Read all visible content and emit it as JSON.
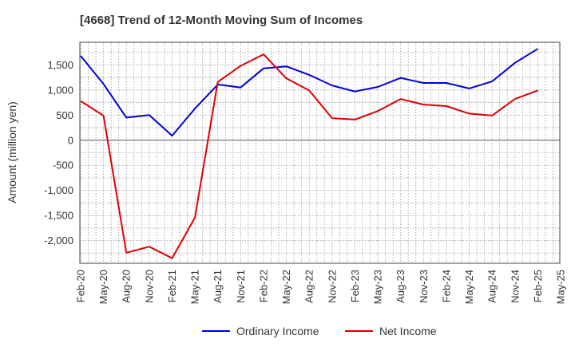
{
  "chart_data": {
    "type": "line",
    "title": "[4668]  Trend of 12-Month Moving Sum of Incomes",
    "xlabel": "",
    "ylabel": "Amount (million yen)",
    "ylim": [
      -2450,
      1950
    ],
    "yticks": [
      1500,
      1000,
      500,
      0,
      -500,
      -1000,
      -1500,
      -2000
    ],
    "ytick_labels": [
      "1,500",
      "1,000",
      "500",
      "0",
      "-500",
      "-1,000",
      "-1,500",
      "-2,000"
    ],
    "grid": true,
    "legend_position": "bottom-center",
    "categories": [
      "Feb-20",
      "May-20",
      "Aug-20",
      "Nov-20",
      "Feb-21",
      "May-21",
      "Aug-21",
      "Nov-21",
      "Feb-22",
      "May-22",
      "Aug-22",
      "Nov-22",
      "Feb-23",
      "May-23",
      "Aug-23",
      "Nov-23",
      "Feb-24",
      "May-24",
      "Aug-24",
      "Nov-24",
      "Feb-25",
      "May-25"
    ],
    "series": [
      {
        "name": "Ordinary Income",
        "color": "#0000dd",
        "values": [
          1680,
          1120,
          450,
          500,
          90,
          630,
          1110,
          1050,
          1430,
          1470,
          1300,
          1090,
          970,
          1060,
          1240,
          1140,
          1140,
          1030,
          1170,
          1540,
          1820,
          null
        ]
      },
      {
        "name": "Net Income",
        "color": "#dd0000",
        "values": [
          780,
          490,
          -2240,
          -2120,
          -2350,
          -1540,
          1160,
          1480,
          1710,
          1230,
          990,
          440,
          410,
          580,
          820,
          710,
          680,
          530,
          490,
          820,
          990,
          null
        ]
      }
    ]
  }
}
